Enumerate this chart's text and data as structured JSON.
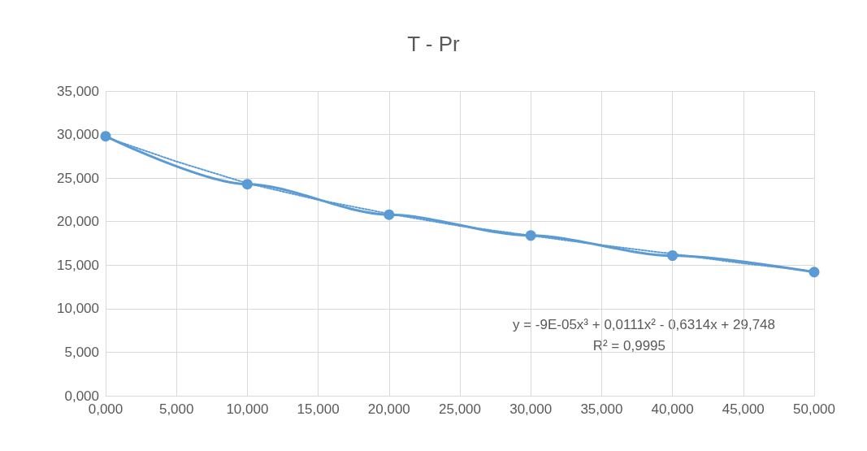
{
  "chart_data": {
    "type": "line",
    "title": "T - Pr",
    "xlim": [
      0,
      50
    ],
    "xticks": [
      {
        "value": 0,
        "label": "0,000"
      },
      {
        "value": 5,
        "label": "5,000"
      },
      {
        "value": 10,
        "label": "10,000"
      },
      {
        "value": 15,
        "label": "15,000"
      },
      {
        "value": 20,
        "label": "20,000"
      },
      {
        "value": 25,
        "label": "25,000"
      },
      {
        "value": 30,
        "label": "30,000"
      },
      {
        "value": 35,
        "label": "35,000"
      },
      {
        "value": 40,
        "label": "40,000"
      },
      {
        "value": 45,
        "label": "45,000"
      },
      {
        "value": 50,
        "label": "50,000"
      }
    ],
    "ylim": [
      0,
      35
    ],
    "yticks": [
      {
        "value": 0,
        "label": "0,000"
      },
      {
        "value": 5,
        "label": "5,000"
      },
      {
        "value": 10,
        "label": "10,000"
      },
      {
        "value": 15,
        "label": "15,000"
      },
      {
        "value": 20,
        "label": "20,000"
      },
      {
        "value": 25,
        "label": "25,000"
      },
      {
        "value": 30,
        "label": "30,000"
      },
      {
        "value": 35,
        "label": "35,000"
      }
    ],
    "grid": true,
    "series": [
      {
        "color": "#5b9bd5",
        "marker": "circle",
        "line_style": "solid",
        "x": [
          0,
          10,
          20,
          30,
          40,
          50
        ],
        "values": [
          29.8,
          24.3,
          20.8,
          18.4,
          16.1,
          14.2
        ]
      },
      {
        "color": "#5b9bd5",
        "marker": "none",
        "line_style": "dotted",
        "x": [
          0,
          5,
          10,
          15,
          20,
          25,
          30,
          35,
          40,
          45,
          50
        ],
        "values": [
          29.7,
          26.9,
          24.4,
          22.5,
          20.9,
          19.5,
          18.4,
          17.3,
          16.3,
          15.2,
          14.3
        ]
      }
    ],
    "annotations": [
      "y = -9E-05x³ + 0,0111x² - 0,6314x + 29,748",
      "R² = 0,9995"
    ]
  }
}
